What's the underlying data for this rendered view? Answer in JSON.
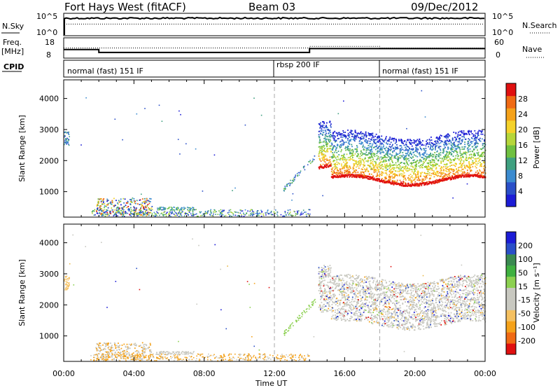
{
  "header": {
    "station": "Fort Hays West (fitACF)",
    "beam": "Beam 03",
    "date": "09/Dec/2012"
  },
  "noise_panel": {
    "left_label": "N.Sky",
    "left_ticks": [
      "10^5",
      "10^0"
    ],
    "right_ticks": [
      "10^5",
      "10^0"
    ],
    "right_label": "N.Search",
    "sky_level": 0.78,
    "search_level": 0.52
  },
  "freq_panel": {
    "left_label_top": "Freq.",
    "left_label_bottom": "[MHz]",
    "left_ticks": [
      18,
      8
    ],
    "right_ticks": [
      60,
      0
    ],
    "right_label": "Nave",
    "freq_segments": [
      {
        "t0": 0.0,
        "t1": 2.0,
        "mhz": 12.0
      },
      {
        "t0": 2.0,
        "t1": 14.0,
        "mhz": 10.2
      },
      {
        "t0": 14.0,
        "t1": 24.0,
        "mhz": 12.6
      }
    ],
    "nave_segments": [
      {
        "t0": 0.0,
        "t1": 2.0,
        "nave": 30
      },
      {
        "t0": 2.0,
        "t1": 14.0,
        "nave": 30
      },
      {
        "t0": 14.0,
        "t1": 18.0,
        "nave": 36
      },
      {
        "t0": 18.0,
        "t1": 24.0,
        "nave": 30
      }
    ]
  },
  "cpid": {
    "label": "CPID",
    "segments": [
      {
        "t": 0.0,
        "text": "normal (fast) 151 IF"
      },
      {
        "t": 12.0,
        "text": "rbsp 200 IF"
      },
      {
        "t": 18.0,
        "text": "normal (fast) 151 IF"
      }
    ]
  },
  "chart_data": [
    {
      "type": "heatmap",
      "panel": "power",
      "ylabel": "Slant Range [km]",
      "xlim": [
        0,
        24
      ],
      "ylim": [
        180,
        4600
      ],
      "yticks": [
        1000,
        2000,
        3000,
        4000
      ],
      "colorbar": {
        "label": "Power [dB]",
        "ticks": [
          "28",
          "24",
          "20",
          "16",
          "12",
          "8",
          "4"
        ],
        "range": [
          0,
          30
        ],
        "colors": [
          "#1c1cd6",
          "#2a4fc8",
          "#3b8bd0",
          "#3fa080",
          "#6fc040",
          "#b6d63a",
          "#f5d22a",
          "#f5a21a",
          "#f06a14",
          "#e01010"
        ]
      },
      "dashed_times": [
        12.0,
        18.0
      ],
      "regions": [
        {
          "t0": 14.5,
          "t1": 24.0,
          "r0": 1200,
          "r1": 2900,
          "desc": "main band"
        },
        {
          "t0": 0.0,
          "t1": 0.3,
          "r0": 2500,
          "r1": 2950
        },
        {
          "t0": 1.8,
          "t1": 5.0,
          "r0": 250,
          "r1": 800
        },
        {
          "t0": 5.0,
          "t1": 14.0,
          "r0": 220,
          "r1": 400
        }
      ]
    },
    {
      "type": "heatmap",
      "panel": "velocity",
      "ylabel": "Slant Range [km]",
      "xlabel": "Time UT",
      "xlim": [
        0,
        24
      ],
      "ylim": [
        180,
        4600
      ],
      "yticks": [
        1000,
        2000,
        3000,
        4000
      ],
      "xticks": [
        "00:00",
        "04:00",
        "08:00",
        "12:00",
        "16:00",
        "20:00",
        "00:00"
      ],
      "colorbar": {
        "label": "Velocity [m s⁻¹]",
        "ticks": [
          "200",
          "100",
          "50",
          "15",
          "-15",
          "-50",
          "-100",
          "-200"
        ],
        "range": [
          -250,
          250
        ],
        "colors": [
          "#e01010",
          "#f06a14",
          "#f5a21a",
          "#f5c060",
          "#c8c8c0",
          "#c8c8c0",
          "#8cd050",
          "#3fb040",
          "#3a8a50",
          "#2a4fc8",
          "#1c1cd6"
        ]
      },
      "dashed_times": [
        12.0,
        18.0
      ]
    }
  ]
}
